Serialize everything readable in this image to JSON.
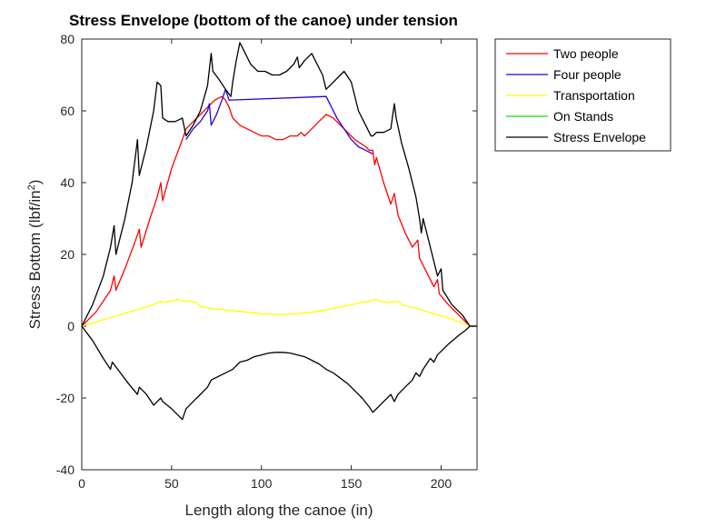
{
  "chart_data": {
    "type": "line",
    "title": "Stress Envelope (bottom of the canoe) under tension",
    "xlabel": "Length along the canoe (in)",
    "ylabel_main": "Stress Bottom (lbf/in",
    "ylabel_sup": "2",
    "ylabel_close": ")",
    "xlim": [
      0,
      220
    ],
    "ylim": [
      -40,
      80
    ],
    "xticks": [
      0,
      50,
      100,
      150,
      200
    ],
    "yticks": [
      -40,
      -20,
      0,
      20,
      40,
      60,
      80
    ],
    "grid": false,
    "legend_position": "top-right",
    "series": [
      {
        "name": "Two people",
        "color": "#ff0000",
        "points": [
          [
            0,
            0
          ],
          [
            8,
            4
          ],
          [
            16,
            10
          ],
          [
            18,
            14
          ],
          [
            19,
            10
          ],
          [
            24,
            16
          ],
          [
            30,
            24
          ],
          [
            32,
            27
          ],
          [
            33,
            22
          ],
          [
            38,
            30
          ],
          [
            42,
            36
          ],
          [
            44,
            40
          ],
          [
            45,
            35
          ],
          [
            50,
            44
          ],
          [
            56,
            52
          ],
          [
            58,
            55
          ],
          [
            62,
            57
          ],
          [
            66,
            59
          ],
          [
            70,
            61
          ],
          [
            72,
            62
          ],
          [
            74,
            63
          ],
          [
            78,
            64
          ],
          [
            80,
            63
          ],
          [
            82,
            61
          ],
          [
            84,
            58
          ],
          [
            88,
            56
          ],
          [
            92,
            55
          ],
          [
            96,
            54
          ],
          [
            100,
            53
          ],
          [
            104,
            53
          ],
          [
            108,
            52
          ],
          [
            110,
            52
          ],
          [
            112,
            52
          ],
          [
            116,
            53
          ],
          [
            120,
            53
          ],
          [
            122,
            54
          ],
          [
            124,
            53
          ],
          [
            128,
            55
          ],
          [
            132,
            57
          ],
          [
            136,
            59
          ],
          [
            140,
            58
          ],
          [
            146,
            55
          ],
          [
            152,
            52
          ],
          [
            158,
            50
          ],
          [
            160,
            49
          ],
          [
            162,
            49
          ],
          [
            163,
            45
          ],
          [
            164,
            47
          ],
          [
            168,
            40
          ],
          [
            172,
            34
          ],
          [
            174,
            37
          ],
          [
            176,
            31
          ],
          [
            180,
            26
          ],
          [
            184,
            22
          ],
          [
            187,
            24
          ],
          [
            188,
            19
          ],
          [
            192,
            15
          ],
          [
            196,
            11
          ],
          [
            198,
            13
          ],
          [
            199,
            9
          ],
          [
            204,
            6
          ],
          [
            210,
            3
          ],
          [
            214,
            1
          ],
          [
            216,
            0
          ],
          [
            218,
            0
          ]
        ]
      },
      {
        "name": "Four people",
        "color": "#2a00d5",
        "points": [
          [
            58,
            52
          ],
          [
            62,
            55
          ],
          [
            66,
            57
          ],
          [
            70,
            60
          ],
          [
            71,
            62
          ],
          [
            72,
            56
          ],
          [
            75,
            59
          ],
          [
            78,
            63
          ],
          [
            80,
            66
          ],
          [
            82,
            63
          ],
          [
            136,
            64
          ],
          [
            138,
            62
          ],
          [
            142,
            58
          ],
          [
            146,
            55
          ],
          [
            150,
            52
          ],
          [
            154,
            50
          ],
          [
            158,
            49
          ],
          [
            162,
            48
          ]
        ]
      },
      {
        "name": "Transportation",
        "color": "#ffff00",
        "points": [
          [
            0,
            0
          ],
          [
            10,
            1.5
          ],
          [
            20,
            3
          ],
          [
            30,
            4.5
          ],
          [
            40,
            6
          ],
          [
            44,
            7
          ],
          [
            46,
            6.5
          ],
          [
            50,
            7
          ],
          [
            54,
            7.5
          ],
          [
            56,
            7
          ],
          [
            60,
            7
          ],
          [
            64,
            6.5
          ],
          [
            66,
            5.5
          ],
          [
            72,
            5
          ],
          [
            80,
            4.5
          ],
          [
            90,
            4
          ],
          [
            100,
            3.5
          ],
          [
            110,
            3.2
          ],
          [
            120,
            3.5
          ],
          [
            130,
            4
          ],
          [
            140,
            5
          ],
          [
            150,
            6
          ],
          [
            160,
            7
          ],
          [
            164,
            7.5
          ],
          [
            166,
            7
          ],
          [
            170,
            6.5
          ],
          [
            176,
            7
          ],
          [
            178,
            6
          ],
          [
            186,
            5
          ],
          [
            196,
            3.5
          ],
          [
            206,
            2
          ],
          [
            214,
            0.5
          ],
          [
            218,
            0
          ]
        ]
      },
      {
        "name": "On Stands",
        "color": "#00e600",
        "points": []
      },
      {
        "name": "Stress Envelope",
        "color": "#000000",
        "points": [
          [
            0,
            0
          ],
          [
            6,
            6
          ],
          [
            12,
            14
          ],
          [
            16,
            22
          ],
          [
            18,
            28
          ],
          [
            19,
            20
          ],
          [
            24,
            30
          ],
          [
            28,
            40
          ],
          [
            31,
            52
          ],
          [
            32,
            42
          ],
          [
            36,
            50
          ],
          [
            40,
            60
          ],
          [
            42,
            68
          ],
          [
            44,
            67
          ],
          [
            45,
            58
          ],
          [
            48,
            57
          ],
          [
            52,
            57
          ],
          [
            56,
            58
          ],
          [
            58,
            53
          ],
          [
            62,
            56
          ],
          [
            66,
            60
          ],
          [
            70,
            67
          ],
          [
            72,
            76
          ],
          [
            73,
            71
          ],
          [
            76,
            69
          ],
          [
            80,
            66
          ],
          [
            83,
            64
          ],
          [
            84,
            68
          ],
          [
            86,
            74
          ],
          [
            88,
            79
          ],
          [
            90,
            77
          ],
          [
            94,
            73
          ],
          [
            98,
            71
          ],
          [
            102,
            71
          ],
          [
            106,
            70
          ],
          [
            110,
            70
          ],
          [
            114,
            71
          ],
          [
            116,
            72
          ],
          [
            118,
            73
          ],
          [
            120,
            75
          ],
          [
            121,
            72
          ],
          [
            124,
            74
          ],
          [
            128,
            76
          ],
          [
            130,
            74
          ],
          [
            134,
            70
          ],
          [
            136,
            66
          ],
          [
            140,
            68
          ],
          [
            144,
            70
          ],
          [
            146,
            71
          ],
          [
            150,
            68
          ],
          [
            154,
            60
          ],
          [
            158,
            56
          ],
          [
            161,
            53
          ],
          [
            162,
            53
          ],
          [
            164,
            54
          ],
          [
            168,
            54
          ],
          [
            172,
            55
          ],
          [
            174,
            62
          ],
          [
            175,
            58
          ],
          [
            178,
            51
          ],
          [
            182,
            44
          ],
          [
            186,
            36
          ],
          [
            188,
            30
          ],
          [
            189,
            26
          ],
          [
            190,
            30
          ],
          [
            194,
            22
          ],
          [
            198,
            14
          ],
          [
            200,
            16
          ],
          [
            201,
            10
          ],
          [
            206,
            6
          ],
          [
            212,
            3
          ],
          [
            216,
            0
          ],
          [
            220,
            0
          ]
        ]
      },
      {
        "name": "",
        "legend": false,
        "color": "#000000",
        "points": [
          [
            0,
            0
          ],
          [
            6,
            -4
          ],
          [
            12,
            -9
          ],
          [
            16,
            -12
          ],
          [
            17,
            -10
          ],
          [
            20,
            -12
          ],
          [
            26,
            -16
          ],
          [
            31,
            -19
          ],
          [
            32,
            -17
          ],
          [
            36,
            -19
          ],
          [
            40,
            -22
          ],
          [
            44,
            -20
          ],
          [
            45,
            -21
          ],
          [
            50,
            -23
          ],
          [
            56,
            -26
          ],
          [
            58,
            -23
          ],
          [
            62,
            -21
          ],
          [
            66,
            -19
          ],
          [
            70,
            -17
          ],
          [
            72,
            -15
          ],
          [
            76,
            -14
          ],
          [
            80,
            -13
          ],
          [
            84,
            -12
          ],
          [
            88,
            -10
          ],
          [
            92,
            -9.5
          ],
          [
            96,
            -8.5
          ],
          [
            100,
            -8
          ],
          [
            104,
            -7.5
          ],
          [
            108,
            -7.3
          ],
          [
            110,
            -7.3
          ],
          [
            112,
            -7.3
          ],
          [
            116,
            -7.5
          ],
          [
            120,
            -8
          ],
          [
            124,
            -8.5
          ],
          [
            128,
            -9.5
          ],
          [
            132,
            -10.5
          ],
          [
            136,
            -12
          ],
          [
            140,
            -13
          ],
          [
            144,
            -14.5
          ],
          [
            148,
            -16
          ],
          [
            152,
            -18
          ],
          [
            156,
            -20
          ],
          [
            160,
            -22.5
          ],
          [
            162,
            -24
          ],
          [
            164,
            -23
          ],
          [
            168,
            -21
          ],
          [
            172,
            -19
          ],
          [
            174,
            -21
          ],
          [
            176,
            -19
          ],
          [
            180,
            -17
          ],
          [
            184,
            -15
          ],
          [
            186,
            -13
          ],
          [
            188,
            -14
          ],
          [
            190,
            -12
          ],
          [
            194,
            -9
          ],
          [
            196,
            -10
          ],
          [
            198,
            -8
          ],
          [
            204,
            -5
          ],
          [
            210,
            -2.5
          ],
          [
            214,
            -1
          ],
          [
            216,
            0
          ],
          [
            220,
            0
          ]
        ]
      }
    ]
  }
}
